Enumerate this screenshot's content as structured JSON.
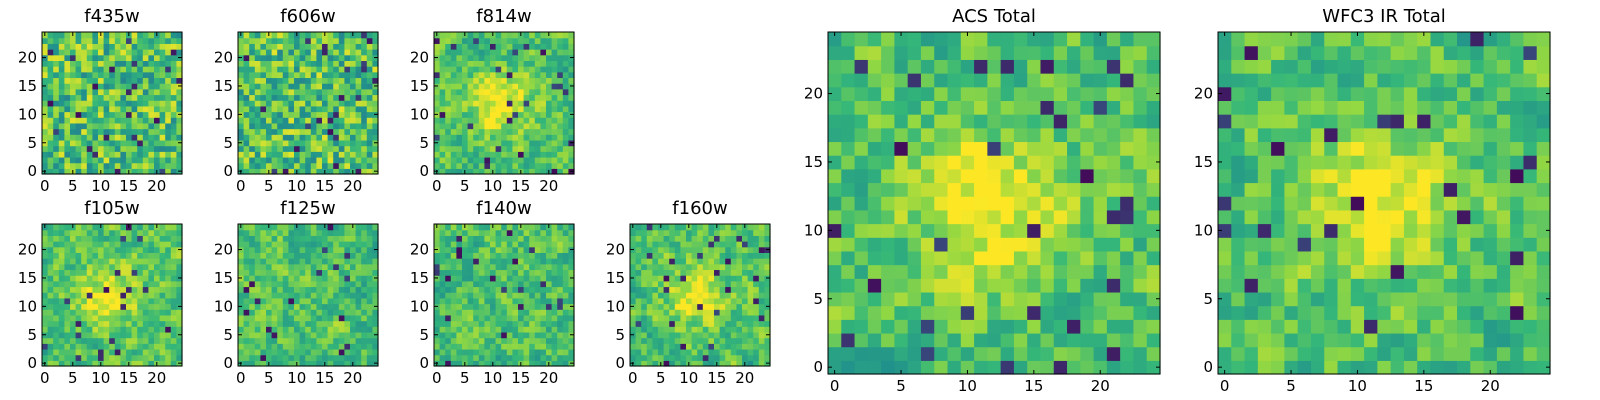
{
  "figure": {
    "colormap": [
      "#440154",
      "#31688e",
      "#21918c",
      "#35b779",
      "#90d743",
      "#fde725"
    ]
  },
  "chart_data": [
    {
      "type": "heatmap",
      "title": "f435w",
      "grid_size": [
        25,
        25
      ],
      "xlim": [
        0,
        24
      ],
      "ylim": [
        0,
        24
      ],
      "xticks": [
        0,
        5,
        10,
        15,
        20
      ],
      "yticks": [
        0,
        5,
        10,
        15,
        20
      ],
      "value_range": [
        0,
        1
      ],
      "pattern_seed": 11,
      "pattern": "noise"
    },
    {
      "type": "heatmap",
      "title": "f606w",
      "grid_size": [
        25,
        25
      ],
      "xlim": [
        0,
        24
      ],
      "ylim": [
        0,
        24
      ],
      "xticks": [
        0,
        5,
        10,
        15,
        20
      ],
      "yticks": [
        0,
        5,
        10,
        15,
        20
      ],
      "value_range": [
        0,
        1
      ],
      "pattern_seed": 23,
      "pattern": "noise"
    },
    {
      "type": "heatmap",
      "title": "f814w",
      "grid_size": [
        25,
        25
      ],
      "xlim": [
        0,
        24
      ],
      "ylim": [
        0,
        24
      ],
      "xticks": [
        0,
        5,
        10,
        15,
        20
      ],
      "yticks": [
        0,
        5,
        10,
        15,
        20
      ],
      "value_range": [
        0,
        1
      ],
      "pattern_seed": 37,
      "pattern": "source"
    },
    {
      "type": "heatmap",
      "title": "f105w",
      "grid_size": [
        25,
        25
      ],
      "xlim": [
        0,
        24
      ],
      "ylim": [
        0,
        24
      ],
      "xticks": [
        0,
        5,
        10,
        15,
        20
      ],
      "yticks": [
        0,
        5,
        10,
        15,
        20
      ],
      "value_range": [
        0,
        1
      ],
      "pattern_seed": 41,
      "pattern": "source"
    },
    {
      "type": "heatmap",
      "title": "f125w",
      "grid_size": [
        25,
        25
      ],
      "xlim": [
        0,
        24
      ],
      "ylim": [
        0,
        24
      ],
      "xticks": [
        0,
        5,
        10,
        15,
        20
      ],
      "yticks": [
        0,
        5,
        10,
        15,
        20
      ],
      "value_range": [
        0,
        1
      ],
      "pattern_seed": 53,
      "pattern": "smooth"
    },
    {
      "type": "heatmap",
      "title": "f140w",
      "grid_size": [
        25,
        25
      ],
      "xlim": [
        0,
        24
      ],
      "ylim": [
        0,
        24
      ],
      "xticks": [
        0,
        5,
        10,
        15,
        20
      ],
      "yticks": [
        0,
        5,
        10,
        15,
        20
      ],
      "value_range": [
        0,
        1
      ],
      "pattern_seed": 67,
      "pattern": "smooth"
    },
    {
      "type": "heatmap",
      "title": "f160w",
      "grid_size": [
        25,
        25
      ],
      "xlim": [
        0,
        24
      ],
      "ylim": [
        0,
        24
      ],
      "xticks": [
        0,
        5,
        10,
        15,
        20
      ],
      "yticks": [
        0,
        5,
        10,
        15,
        20
      ],
      "value_range": [
        0,
        1
      ],
      "pattern_seed": 79,
      "pattern": "source"
    },
    {
      "type": "heatmap",
      "title": "ACS Total",
      "grid_size": [
        25,
        25
      ],
      "xlim": [
        0,
        24
      ],
      "ylim": [
        0,
        24
      ],
      "xticks": [
        0,
        5,
        10,
        15,
        20
      ],
      "yticks": [
        0,
        5,
        10,
        15,
        20
      ],
      "value_range": [
        0,
        1
      ],
      "pattern_seed": 97,
      "pattern": "source"
    },
    {
      "type": "heatmap",
      "title": "WFC3 IR Total",
      "grid_size": [
        25,
        25
      ],
      "xlim": [
        0,
        24
      ],
      "ylim": [
        0,
        24
      ],
      "xticks": [
        0,
        5,
        10,
        15,
        20
      ],
      "yticks": [
        0,
        5,
        10,
        15,
        20
      ],
      "value_range": [
        0,
        1
      ],
      "pattern_seed": 113,
      "pattern": "source"
    }
  ]
}
